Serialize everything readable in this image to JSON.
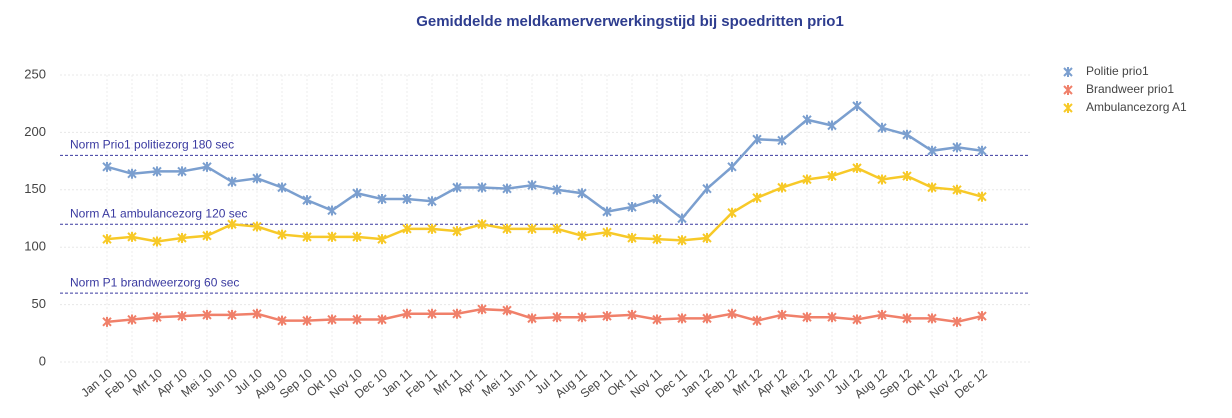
{
  "chart_data": {
    "type": "line",
    "title": "Gemiddelde meldkamerverwerkingstijd bij spoedritten prio1",
    "categories": [
      "Jan 10",
      "Feb 10",
      "Mrt 10",
      "Apr 10",
      "Mei 10",
      "Jun 10",
      "Jul 10",
      "Aug 10",
      "Sep 10",
      "Okt 10",
      "Nov 10",
      "Dec 10",
      "Jan 11",
      "Feb 11",
      "Mrt 11",
      "Apr 11",
      "Mei 11",
      "Jun 11",
      "Jul 11",
      "Aug 11",
      "Sep 11",
      "Okt 11",
      "Nov 11",
      "Dec 11",
      "Jan 12",
      "Feb 12",
      "Mrt 12",
      "Apr 12",
      "Mei 12",
      "Jun 12",
      "Jul 12",
      "Aug 12",
      "Sep 12",
      "Okt 12",
      "Nov 12",
      "Dec 12"
    ],
    "series": [
      {
        "name": "Politie prio1",
        "color": "#7b9fcf",
        "values": [
          170,
          164,
          166,
          166,
          170,
          157,
          160,
          152,
          141,
          132,
          147,
          142,
          142,
          140,
          152,
          152,
          151,
          154,
          150,
          147,
          131,
          135,
          142,
          125,
          151,
          170,
          194,
          193,
          211,
          206,
          223,
          204,
          198,
          184,
          187,
          184
        ]
      },
      {
        "name": "Brandweer prio1",
        "color": "#f0806a",
        "values": [
          35,
          37,
          39,
          40,
          41,
          41,
          42,
          36,
          36,
          37,
          37,
          37,
          42,
          42,
          42,
          46,
          45,
          38,
          39,
          39,
          40,
          41,
          37,
          38,
          38,
          42,
          36,
          41,
          39,
          39,
          37,
          41,
          38,
          38,
          35,
          40
        ]
      },
      {
        "name": "Ambulancezorg A1",
        "color": "#f7c928",
        "values": [
          107,
          109,
          105,
          108,
          110,
          120,
          118,
          111,
          109,
          109,
          109,
          107,
          116,
          116,
          114,
          120,
          116,
          116,
          116,
          110,
          113,
          108,
          107,
          106,
          108,
          130,
          143,
          152,
          159,
          162,
          169,
          159,
          162,
          152,
          150,
          144
        ]
      }
    ],
    "reference_lines": [
      {
        "value": 180,
        "label": "Norm Prio1 politiezorg 180 sec"
      },
      {
        "value": 120,
        "label": "Norm A1 ambulancezorg 120 sec"
      },
      {
        "value": 60,
        "label": "Norm P1 brandweerzorg 60 sec"
      }
    ],
    "reference_color": "#3a3aa0",
    "ylim": [
      0,
      250
    ],
    "yticks": [
      0,
      50,
      100,
      150,
      200,
      250
    ],
    "grid": true,
    "legend": "right"
  }
}
